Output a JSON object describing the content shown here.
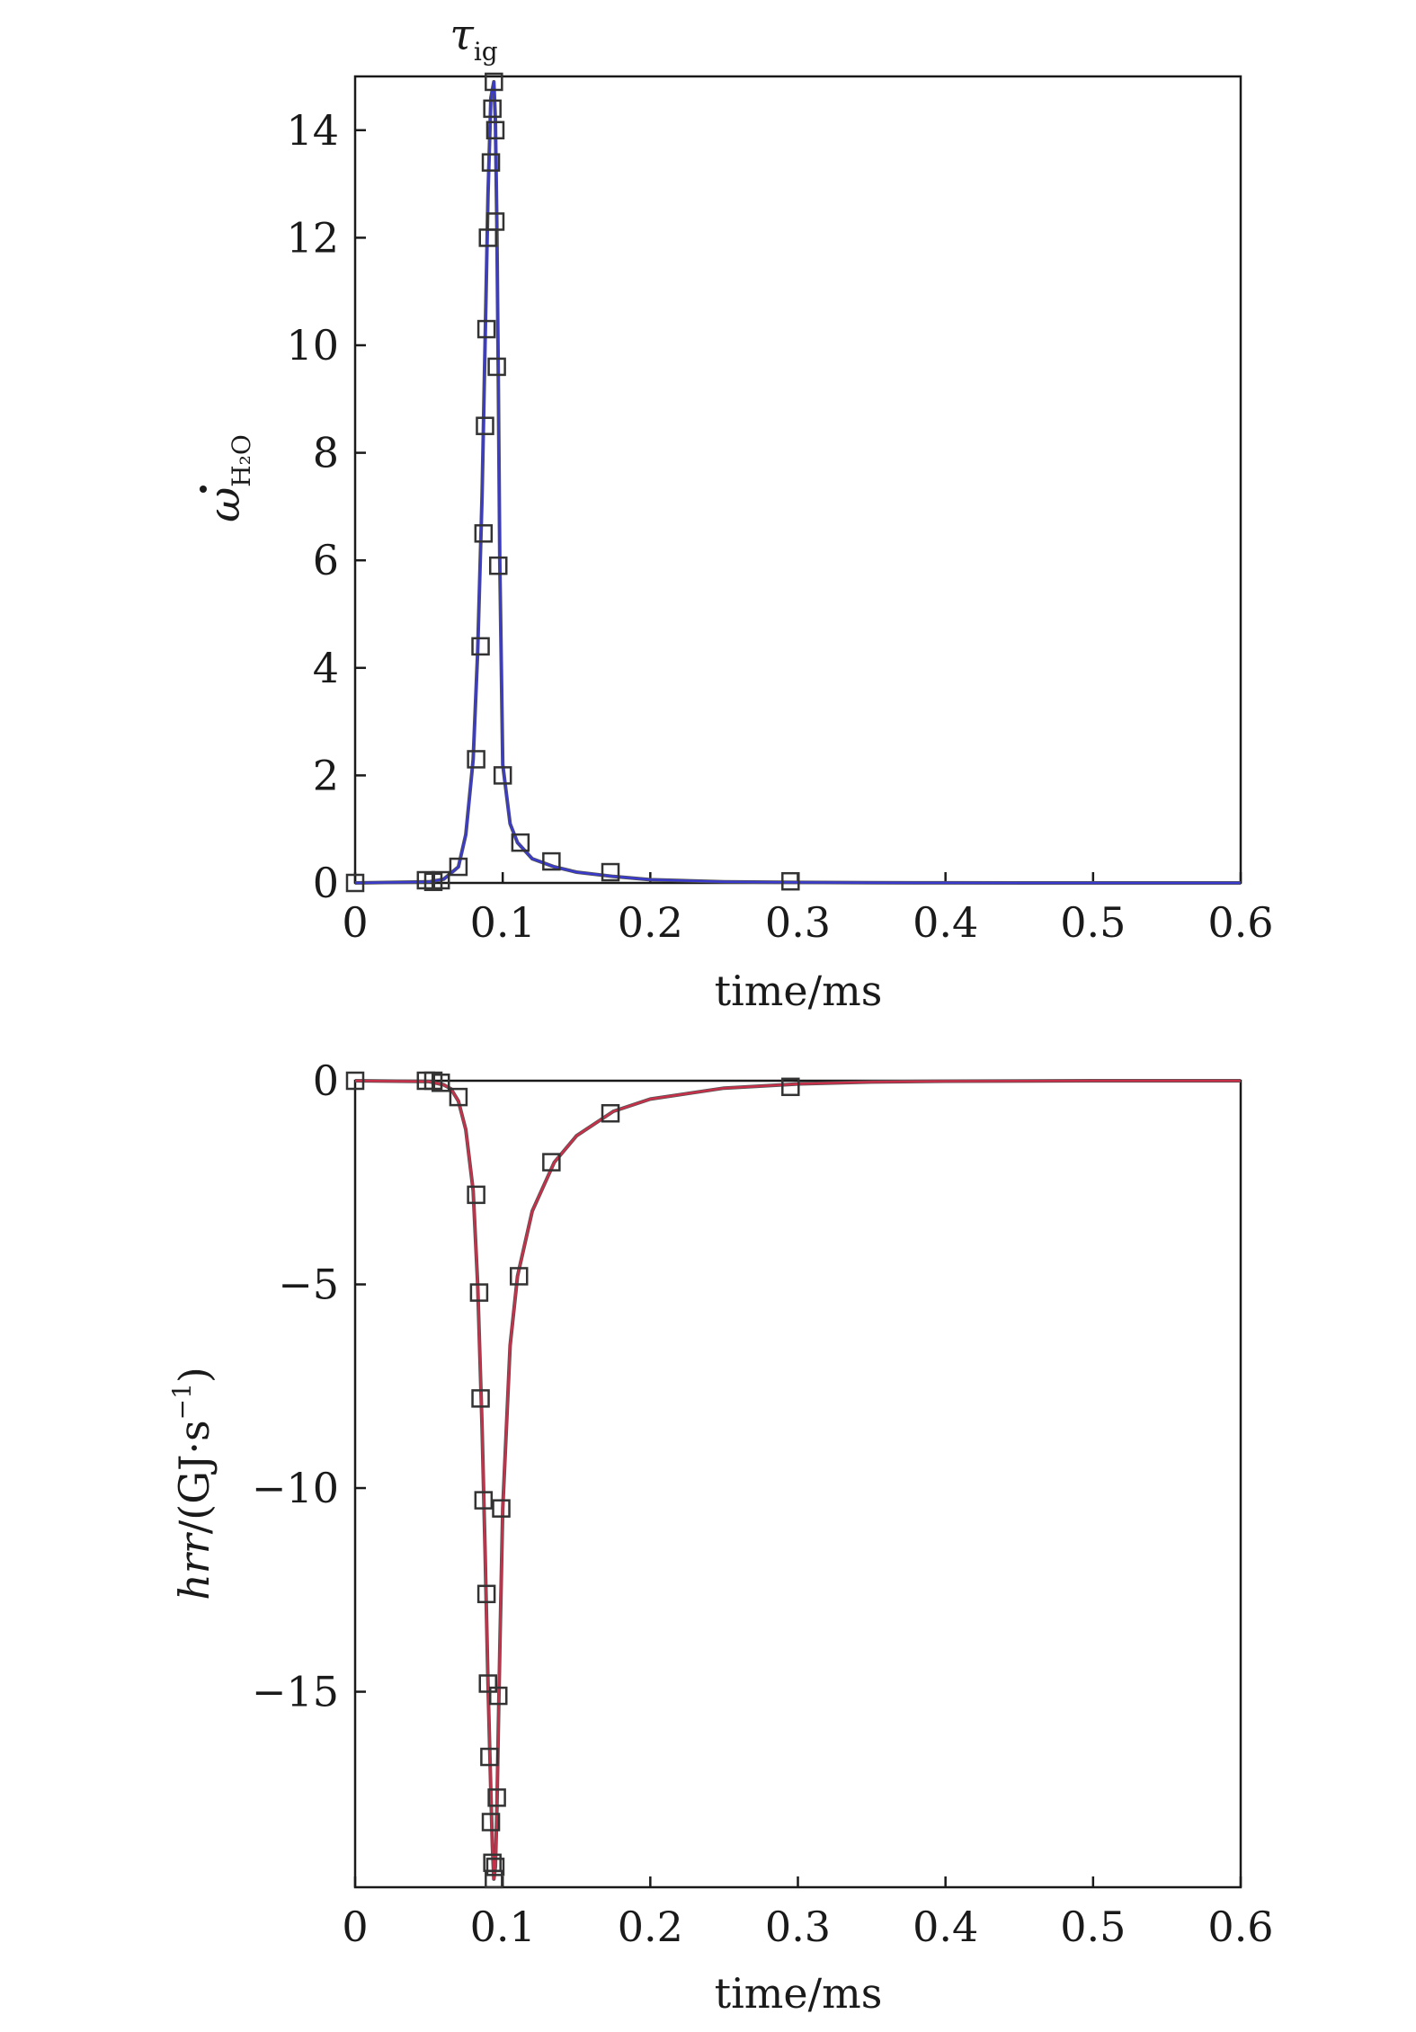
{
  "chart_data": [
    {
      "type": "line",
      "xlabel": "time/ms",
      "ylabel_symbol": "ω",
      "ylabel_subscript": "H₂O",
      "annotation": {
        "symbol": "τ",
        "subscript": "ig"
      },
      "xlim": [
        0,
        0.6
      ],
      "ylim": [
        0,
        15
      ],
      "xticks": [
        "0",
        "0.1",
        "0.2",
        "0.3",
        "0.4",
        "0.5",
        "0.6"
      ],
      "yticks": [
        "0",
        "2",
        "4",
        "6",
        "8",
        "10",
        "12",
        "14"
      ],
      "series": [
        {
          "kind": "line",
          "color": "#3a3acc",
          "x": [
            0,
            0.05,
            0.06,
            0.07,
            0.075,
            0.08,
            0.083,
            0.086,
            0.088,
            0.09,
            0.092,
            0.094,
            0.095,
            0.096,
            0.097,
            0.098,
            0.1,
            0.105,
            0.11,
            0.12,
            0.135,
            0.15,
            0.175,
            0.2,
            0.25,
            0.3,
            0.35,
            0.4,
            0.5,
            0.6
          ],
          "y": [
            0,
            0.02,
            0.07,
            0.3,
            0.9,
            2.3,
            4.3,
            7.2,
            10.0,
            12.8,
            14.6,
            14.9,
            14.2,
            12.3,
            9.5,
            6.0,
            2.2,
            1.1,
            0.75,
            0.45,
            0.3,
            0.2,
            0.12,
            0.06,
            0.02,
            0.01,
            0.004,
            0.002,
            0.0,
            0.0
          ]
        },
        {
          "kind": "markers",
          "x": [
            0,
            0.048,
            0.053,
            0.058,
            0.07,
            0.082,
            0.085,
            0.087,
            0.088,
            0.089,
            0.09,
            0.092,
            0.093,
            0.094,
            0.095,
            0.095,
            0.096,
            0.097,
            0.1,
            0.112,
            0.133,
            0.173,
            0.295
          ],
          "y": [
            0,
            0.05,
            0.02,
            0.05,
            0.3,
            2.3,
            4.4,
            6.5,
            8.5,
            10.3,
            12.0,
            13.4,
            14.4,
            14.9,
            14.0,
            12.3,
            9.6,
            5.9,
            2.0,
            0.75,
            0.4,
            0.2,
            0.03
          ]
        }
      ]
    },
    {
      "type": "line",
      "xlabel": "time/ms",
      "ylabel_symbol": "hrr",
      "ylabel_unit": "/(GJ·s",
      "ylabel_exp": "−1",
      "ylabel_close": ")",
      "xlim": [
        0,
        0.6
      ],
      "ylim": [
        -19.8,
        0
      ],
      "xticks": [
        "0",
        "0.1",
        "0.2",
        "0.3",
        "0.4",
        "0.5",
        "0.6"
      ],
      "yticks": [
        {
          "value": 0,
          "label": "0"
        },
        {
          "value": -5,
          "label": "−5"
        },
        {
          "value": -10,
          "label": "−10"
        },
        {
          "value": -15,
          "label": "−15"
        }
      ],
      "series": [
        {
          "kind": "line",
          "color": "#c8304a",
          "x": [
            0,
            0.05,
            0.06,
            0.065,
            0.07,
            0.075,
            0.08,
            0.083,
            0.086,
            0.088,
            0.09,
            0.092,
            0.093,
            0.094,
            0.095,
            0.096,
            0.097,
            0.098,
            0.1,
            0.105,
            0.11,
            0.12,
            0.135,
            0.15,
            0.175,
            0.2,
            0.25,
            0.3,
            0.35,
            0.4,
            0.5,
            0.6
          ],
          "y": [
            0,
            -0.02,
            -0.1,
            -0.2,
            -0.5,
            -1.2,
            -2.7,
            -5.0,
            -8.5,
            -11.5,
            -14.8,
            -17.5,
            -18.8,
            -19.6,
            -19.3,
            -18.0,
            -16.0,
            -14.0,
            -10.5,
            -6.5,
            -4.8,
            -3.2,
            -2.0,
            -1.35,
            -0.75,
            -0.45,
            -0.18,
            -0.08,
            -0.03,
            -0.01,
            0,
            0
          ]
        },
        {
          "kind": "markers",
          "x": [
            0,
            0.048,
            0.053,
            0.058,
            0.07,
            0.082,
            0.084,
            0.085,
            0.087,
            0.089,
            0.09,
            0.091,
            0.092,
            0.093,
            0.094,
            0.095,
            0.096,
            0.097,
            0.099,
            0.111,
            0.133,
            0.173,
            0.295
          ],
          "y": [
            0,
            0,
            0,
            -0.05,
            -0.4,
            -2.8,
            -5.2,
            -7.8,
            -10.3,
            -12.6,
            -14.8,
            -16.6,
            -18.2,
            -19.2,
            -19.6,
            -19.3,
            -17.6,
            -15.1,
            -10.5,
            -4.8,
            -2.0,
            -0.8,
            -0.15
          ]
        }
      ]
    }
  ]
}
